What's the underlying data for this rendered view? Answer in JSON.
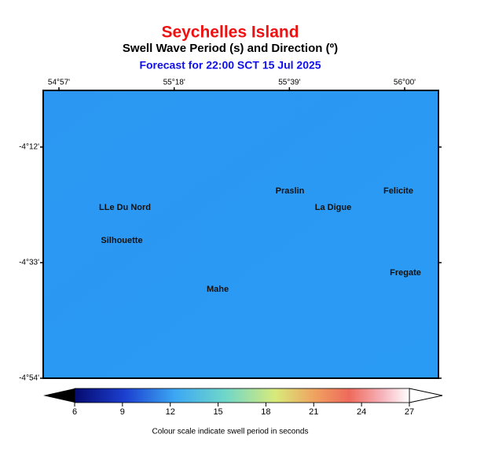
{
  "header": {
    "title": "Seychelles Island",
    "subtitle": "Swell Wave Period (s) and Direction (º)",
    "forecast": "Forecast for  22:00 SCT 15 Jul 2025"
  },
  "map": {
    "lon_ticks": [
      {
        "value": 54.95,
        "label": "54°57'"
      },
      {
        "value": 55.3,
        "label": "55°18'"
      },
      {
        "value": 55.65,
        "label": "55°39'"
      },
      {
        "value": 56.0,
        "label": "56°00'"
      }
    ],
    "lat_ticks": [
      {
        "value": -4.2,
        "label": "-4°12'"
      },
      {
        "value": -4.55,
        "label": "-4°33'"
      },
      {
        "value": -4.9,
        "label": "-4°54'"
      }
    ],
    "places": [
      "Praslin",
      "Felicite",
      "LLe Du Nord",
      "La Digue",
      "Silhouette",
      "Fregate",
      "Mahe"
    ]
  },
  "colorbar": {
    "ticks": [
      6,
      9,
      12,
      15,
      18,
      21,
      24,
      27
    ],
    "caption": "Colour scale indicate swell period in seconds"
  }
}
